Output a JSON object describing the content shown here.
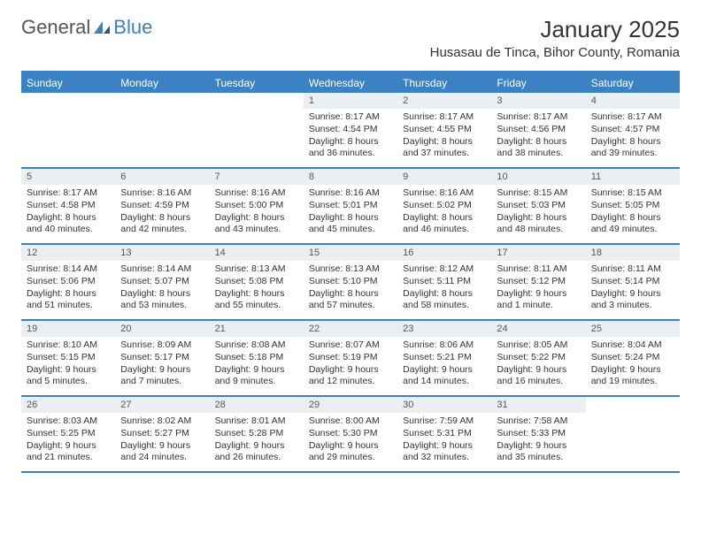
{
  "logo": {
    "text1": "General",
    "text2": "Blue"
  },
  "title": "January 2025",
  "location": "Husasau de Tinca, Bihor County, Romania",
  "colors": {
    "accent": "#3b82c4",
    "header_bg": "#eceff1",
    "text": "#333333",
    "bg": "#ffffff"
  },
  "weekdays": [
    "Sunday",
    "Monday",
    "Tuesday",
    "Wednesday",
    "Thursday",
    "Friday",
    "Saturday"
  ],
  "font": {
    "title_size": 26,
    "location_size": 15,
    "weekday_size": 12,
    "cell_size": 10.5
  },
  "weeks": [
    [
      null,
      null,
      null,
      {
        "n": "1",
        "sr": "Sunrise: 8:17 AM",
        "ss": "Sunset: 4:54 PM",
        "dl1": "Daylight: 8 hours",
        "dl2": "and 36 minutes."
      },
      {
        "n": "2",
        "sr": "Sunrise: 8:17 AM",
        "ss": "Sunset: 4:55 PM",
        "dl1": "Daylight: 8 hours",
        "dl2": "and 37 minutes."
      },
      {
        "n": "3",
        "sr": "Sunrise: 8:17 AM",
        "ss": "Sunset: 4:56 PM",
        "dl1": "Daylight: 8 hours",
        "dl2": "and 38 minutes."
      },
      {
        "n": "4",
        "sr": "Sunrise: 8:17 AM",
        "ss": "Sunset: 4:57 PM",
        "dl1": "Daylight: 8 hours",
        "dl2": "and 39 minutes."
      }
    ],
    [
      {
        "n": "5",
        "sr": "Sunrise: 8:17 AM",
        "ss": "Sunset: 4:58 PM",
        "dl1": "Daylight: 8 hours",
        "dl2": "and 40 minutes."
      },
      {
        "n": "6",
        "sr": "Sunrise: 8:16 AM",
        "ss": "Sunset: 4:59 PM",
        "dl1": "Daylight: 8 hours",
        "dl2": "and 42 minutes."
      },
      {
        "n": "7",
        "sr": "Sunrise: 8:16 AM",
        "ss": "Sunset: 5:00 PM",
        "dl1": "Daylight: 8 hours",
        "dl2": "and 43 minutes."
      },
      {
        "n": "8",
        "sr": "Sunrise: 8:16 AM",
        "ss": "Sunset: 5:01 PM",
        "dl1": "Daylight: 8 hours",
        "dl2": "and 45 minutes."
      },
      {
        "n": "9",
        "sr": "Sunrise: 8:16 AM",
        "ss": "Sunset: 5:02 PM",
        "dl1": "Daylight: 8 hours",
        "dl2": "and 46 minutes."
      },
      {
        "n": "10",
        "sr": "Sunrise: 8:15 AM",
        "ss": "Sunset: 5:03 PM",
        "dl1": "Daylight: 8 hours",
        "dl2": "and 48 minutes."
      },
      {
        "n": "11",
        "sr": "Sunrise: 8:15 AM",
        "ss": "Sunset: 5:05 PM",
        "dl1": "Daylight: 8 hours",
        "dl2": "and 49 minutes."
      }
    ],
    [
      {
        "n": "12",
        "sr": "Sunrise: 8:14 AM",
        "ss": "Sunset: 5:06 PM",
        "dl1": "Daylight: 8 hours",
        "dl2": "and 51 minutes."
      },
      {
        "n": "13",
        "sr": "Sunrise: 8:14 AM",
        "ss": "Sunset: 5:07 PM",
        "dl1": "Daylight: 8 hours",
        "dl2": "and 53 minutes."
      },
      {
        "n": "14",
        "sr": "Sunrise: 8:13 AM",
        "ss": "Sunset: 5:08 PM",
        "dl1": "Daylight: 8 hours",
        "dl2": "and 55 minutes."
      },
      {
        "n": "15",
        "sr": "Sunrise: 8:13 AM",
        "ss": "Sunset: 5:10 PM",
        "dl1": "Daylight: 8 hours",
        "dl2": "and 57 minutes."
      },
      {
        "n": "16",
        "sr": "Sunrise: 8:12 AM",
        "ss": "Sunset: 5:11 PM",
        "dl1": "Daylight: 8 hours",
        "dl2": "and 58 minutes."
      },
      {
        "n": "17",
        "sr": "Sunrise: 8:11 AM",
        "ss": "Sunset: 5:12 PM",
        "dl1": "Daylight: 9 hours",
        "dl2": "and 1 minute."
      },
      {
        "n": "18",
        "sr": "Sunrise: 8:11 AM",
        "ss": "Sunset: 5:14 PM",
        "dl1": "Daylight: 9 hours",
        "dl2": "and 3 minutes."
      }
    ],
    [
      {
        "n": "19",
        "sr": "Sunrise: 8:10 AM",
        "ss": "Sunset: 5:15 PM",
        "dl1": "Daylight: 9 hours",
        "dl2": "and 5 minutes."
      },
      {
        "n": "20",
        "sr": "Sunrise: 8:09 AM",
        "ss": "Sunset: 5:17 PM",
        "dl1": "Daylight: 9 hours",
        "dl2": "and 7 minutes."
      },
      {
        "n": "21",
        "sr": "Sunrise: 8:08 AM",
        "ss": "Sunset: 5:18 PM",
        "dl1": "Daylight: 9 hours",
        "dl2": "and 9 minutes."
      },
      {
        "n": "22",
        "sr": "Sunrise: 8:07 AM",
        "ss": "Sunset: 5:19 PM",
        "dl1": "Daylight: 9 hours",
        "dl2": "and 12 minutes."
      },
      {
        "n": "23",
        "sr": "Sunrise: 8:06 AM",
        "ss": "Sunset: 5:21 PM",
        "dl1": "Daylight: 9 hours",
        "dl2": "and 14 minutes."
      },
      {
        "n": "24",
        "sr": "Sunrise: 8:05 AM",
        "ss": "Sunset: 5:22 PM",
        "dl1": "Daylight: 9 hours",
        "dl2": "and 16 minutes."
      },
      {
        "n": "25",
        "sr": "Sunrise: 8:04 AM",
        "ss": "Sunset: 5:24 PM",
        "dl1": "Daylight: 9 hours",
        "dl2": "and 19 minutes."
      }
    ],
    [
      {
        "n": "26",
        "sr": "Sunrise: 8:03 AM",
        "ss": "Sunset: 5:25 PM",
        "dl1": "Daylight: 9 hours",
        "dl2": "and 21 minutes."
      },
      {
        "n": "27",
        "sr": "Sunrise: 8:02 AM",
        "ss": "Sunset: 5:27 PM",
        "dl1": "Daylight: 9 hours",
        "dl2": "and 24 minutes."
      },
      {
        "n": "28",
        "sr": "Sunrise: 8:01 AM",
        "ss": "Sunset: 5:28 PM",
        "dl1": "Daylight: 9 hours",
        "dl2": "and 26 minutes."
      },
      {
        "n": "29",
        "sr": "Sunrise: 8:00 AM",
        "ss": "Sunset: 5:30 PM",
        "dl1": "Daylight: 9 hours",
        "dl2": "and 29 minutes."
      },
      {
        "n": "30",
        "sr": "Sunrise: 7:59 AM",
        "ss": "Sunset: 5:31 PM",
        "dl1": "Daylight: 9 hours",
        "dl2": "and 32 minutes."
      },
      {
        "n": "31",
        "sr": "Sunrise: 7:58 AM",
        "ss": "Sunset: 5:33 PM",
        "dl1": "Daylight: 9 hours",
        "dl2": "and 35 minutes."
      },
      null
    ]
  ]
}
